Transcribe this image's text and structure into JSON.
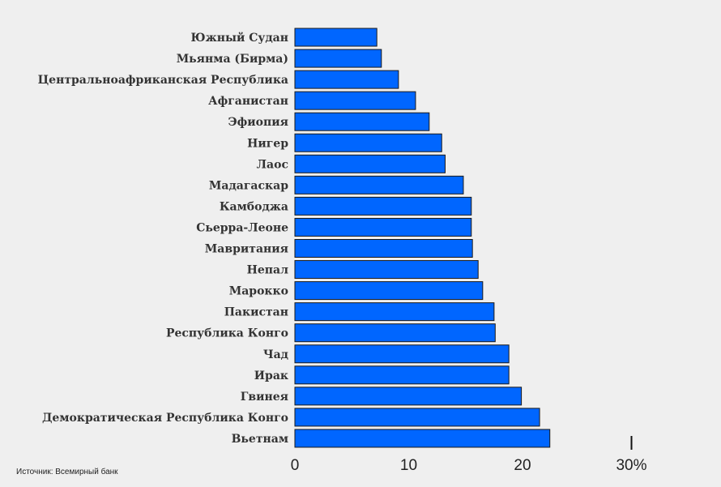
{
  "chart_data": {
    "type": "bar",
    "orientation": "horizontal",
    "categories": [
      "Южный Судан",
      "Мьянма (Бирма)",
      "Центральноафриканская Республика",
      "Афганистан",
      "Эфиопия",
      "Нигер",
      "Лаос",
      "Мадагаскар",
      "Камбоджа",
      "Сьерра-Леоне",
      "Мавритания",
      "Непал",
      "Марокко",
      "Пакистан",
      "Республика Конго",
      "Чад",
      "Ирак",
      "Гвинея",
      "Демократическая Республика Конго",
      "Вьетнам"
    ],
    "values": [
      7.2,
      7.6,
      9.1,
      10.6,
      11.8,
      12.9,
      13.2,
      14.8,
      15.5,
      15.5,
      15.6,
      16.1,
      16.5,
      17.5,
      17.6,
      18.8,
      18.8,
      19.9,
      21.5,
      22.4
    ],
    "xlim": [
      0,
      30
    ],
    "ticks": [
      "0",
      "10",
      "20",
      "30%"
    ],
    "tick_values": [
      0,
      10,
      20,
      30
    ],
    "grid": false,
    "legend": "none",
    "colors": {
      "bar": "#0066ff",
      "bar_stroke": "#1a1a1a",
      "background": "#efefef"
    }
  },
  "source": "Источник: Всемирный банк"
}
